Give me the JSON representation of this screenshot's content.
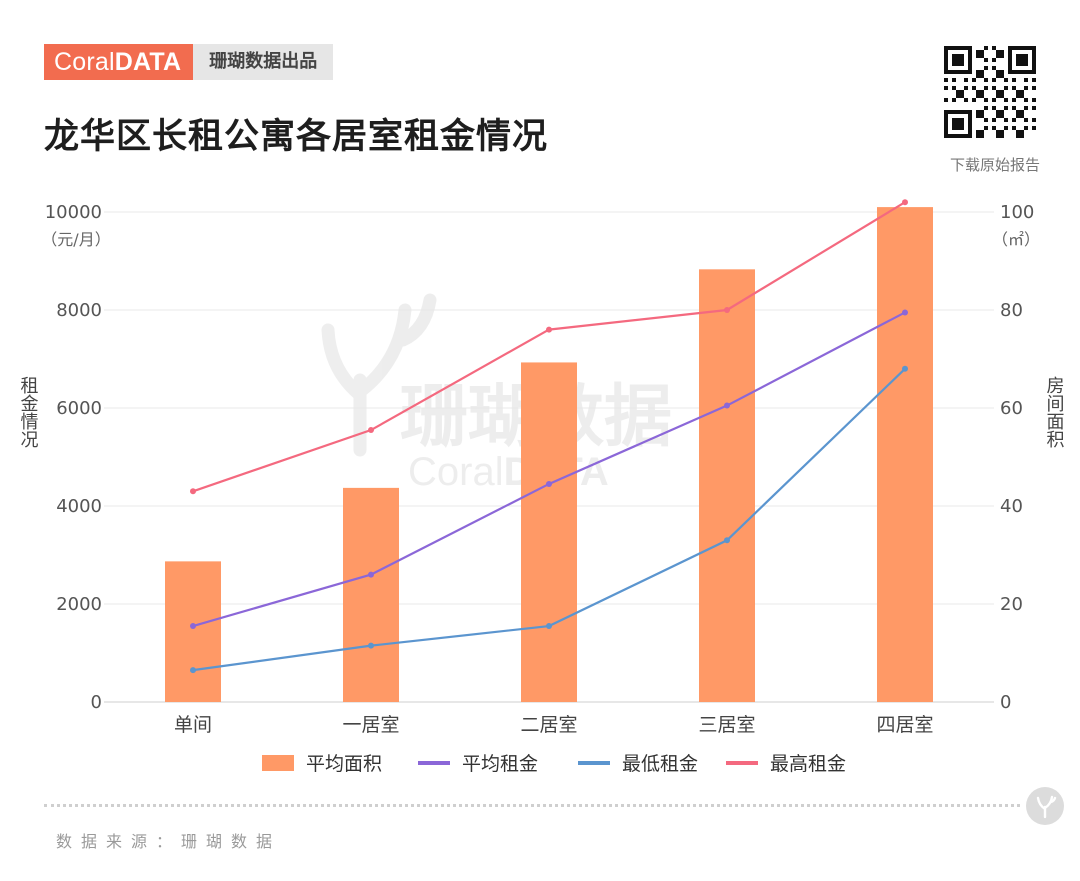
{
  "brand": {
    "logo_light": "Coral",
    "logo_bold": "DATA",
    "subtitle": "珊瑚数据出品"
  },
  "title": "龙华区长租公寓各居室租金情况",
  "download_label": "下载原始报告",
  "watermark": {
    "cn": "珊瑚数据",
    "en_light": "Coral",
    "en_bold": "DATA"
  },
  "source": "数据来源：珊瑚数据",
  "colors": {
    "brand": "#f26c4f",
    "bar": "#ff9966",
    "avg_rent": "#8b67d8",
    "min_rent": "#5b95cf",
    "max_rent": "#f4697f"
  },
  "chart_data": {
    "type": "bar+line",
    "categories": [
      "单间",
      "一居室",
      "二居室",
      "三居室",
      "四居室"
    ],
    "left_axis": {
      "label": "租金情况",
      "unit": "（元/月）",
      "lim": [
        0,
        10000
      ],
      "ticks": [
        "0",
        "2000",
        "4000",
        "6000",
        "8000",
        "10000"
      ]
    },
    "right_axis": {
      "label": "房间面积",
      "unit": "（㎡）",
      "lim": [
        0,
        100
      ],
      "ticks": [
        "0",
        "20",
        "40",
        "60",
        "80",
        "100"
      ]
    },
    "series": [
      {
        "name": "平均面积",
        "type": "bar",
        "axis": "right",
        "color": "#ff9966",
        "values": [
          28.7,
          43.7,
          69.3,
          88.3,
          101
        ]
      },
      {
        "name": "平均租金",
        "type": "line",
        "axis": "left",
        "color": "#8b67d8",
        "values": [
          1550,
          2600,
          4450,
          6050,
          7950
        ]
      },
      {
        "name": "最低租金",
        "type": "line",
        "axis": "left",
        "color": "#5b95cf",
        "values": [
          650,
          1150,
          1550,
          3300,
          6800
        ]
      },
      {
        "name": "最高租金",
        "type": "line",
        "axis": "left",
        "color": "#f4697f",
        "values": [
          4300,
          5550,
          7600,
          8000,
          10200
        ]
      }
    ]
  }
}
